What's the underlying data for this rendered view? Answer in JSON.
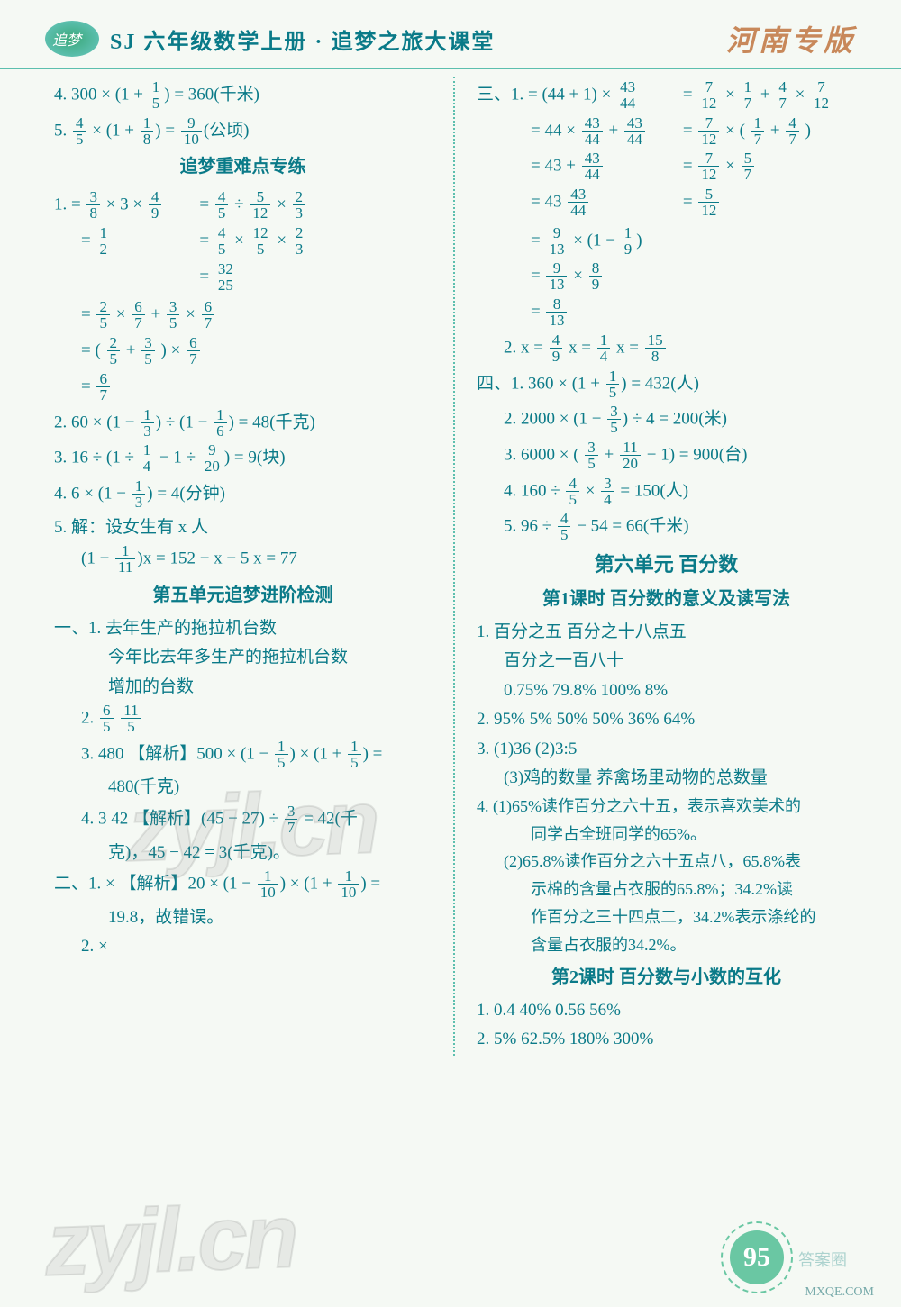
{
  "header": {
    "title": "SJ 六年级数学上册 · 追梦之旅大课堂",
    "edition": "河南专版"
  },
  "left": {
    "l4": "4. 300 × (1 + {1/5}) = 360(千米)",
    "l5": "5. {4/5} × (1 + {1/8}) = {9/10}(公顷)",
    "heading1": "追梦重难点专练",
    "p1a": "1.  = {3/8} × 3 × {4/9}",
    "p1a_r1": "= {4/5} ÷ {5/12} × {2/3}",
    "p1b": "= {1/2}",
    "p1b_r1": "= {4/5} × {12/5} × {2/3}",
    "p1b_r2": "= {32/25}",
    "p1c": "= {2/5} × {6/7} + {3/5} × {6/7}",
    "p1d": "= ( {2/5} + {3/5} ) × {6/7}",
    "p1e": "= {6/7}",
    "p2": "2. 60 × (1 − {1/3}) ÷ (1 − {1/6}) = 48(千克)",
    "p3": "3. 16 ÷ (1 ÷ {1/4} − 1 ÷ {9/20}) = 9(块)",
    "p4": "4. 6 × (1 − {1/3}) = 4(分钟)",
    "p5a": "5. 解：设女生有 x 人",
    "p5b": "(1 − {1/11})x = 152 − x − 5    x = 77",
    "heading2": "第五单元追梦进阶检测",
    "s1_1a": "一、1. 去年生产的拖拉机台数",
    "s1_1b": "今年比去年多生产的拖拉机台数",
    "s1_1c": "增加的台数",
    "s1_2": "2. {6/5}   {11/5}",
    "s1_3a": "3. 480  【解析】500 × (1 − {1/5}) × (1 + {1/5}) =",
    "s1_3b": "480(千克)",
    "s1_4a": "4. 3  42  【解析】(45 − 27) ÷ {3/7} = 42(千",
    "s1_4b": "克)，45 − 42 = 3(千克)。",
    "s2_1a": "二、1. ×  【解析】20 × (1 − {1/10}) × (1 + {1/10}) =",
    "s2_1b": "19.8，故错误。",
    "s2_2": "2. ×"
  },
  "right": {
    "s3_1a": "三、1. = (44 + 1) × {43/44}",
    "s3_1a_r": "= {7/12} × {1/7} + {4/7} × {7/12}",
    "s3_1b": "= 44 × {43/44} + {43/44}",
    "s3_1b_r": "= {7/12} × ( {1/7} + {4/7} )",
    "s3_1c": "= 43 + {43/44}",
    "s3_1c_r": "= {7/12} × {5/7}",
    "s3_1d": "= 43 {43/44}",
    "s3_1d_r": "= {5/12}",
    "s3_1e": "= {9/13} × (1 − {1/9})",
    "s3_1f": "= {9/13} × {8/9}",
    "s3_1g": "= {8/13}",
    "s3_2": "2. x = {4/9}    x = {1/4}    x = {15/8}",
    "s4_1": "四、1. 360 × (1 + {1/5}) = 432(人)",
    "s4_2": "2. 2000 × (1 − {3/5}) ÷ 4 = 200(米)",
    "s4_3": "3. 6000 × ( {3/5} + {11/20} − 1) = 900(台)",
    "s4_4": "4. 160 ÷ {4/5} × {3/4} = 150(人)",
    "s4_5": "5. 96 ÷ {4/5} − 54 = 66(千米)",
    "unit6": "第六单元 百分数",
    "lesson1": "第1课时 百分数的意义及读写法",
    "u1_1a": "1. 百分之五   百分之十八点五",
    "u1_1b": "百分之一百八十",
    "u1_1c": "0.75%   79.8%   100%   8%",
    "u1_2": "2. 95%   5%   50%   50%   36%   64%",
    "u1_3a": "3. (1)36   (2)3:5",
    "u1_3b": "(3)鸡的数量   养禽场里动物的总数量",
    "u1_4a": "4. (1)65%读作百分之六十五，表示喜欢美术的",
    "u1_4b": "同学占全班同学的65%。",
    "u1_4c": "(2)65.8%读作百分之六十五点八，65.8%表",
    "u1_4d": "示棉的含量占衣服的65.8%；34.2%读",
    "u1_4e": "作百分之三十四点二，34.2%表示涤纶的",
    "u1_4f": "含量占衣服的34.2%。",
    "lesson2": "第2课时 百分数与小数的互化",
    "u2_1": "1. 0.4   40%   0.56   56%",
    "u2_2": "2. 5%   62.5%   180%   300%"
  },
  "watermark": "zyjl.cn",
  "site": "MXQE.COM",
  "badge": "答案圈",
  "page_number": "95"
}
